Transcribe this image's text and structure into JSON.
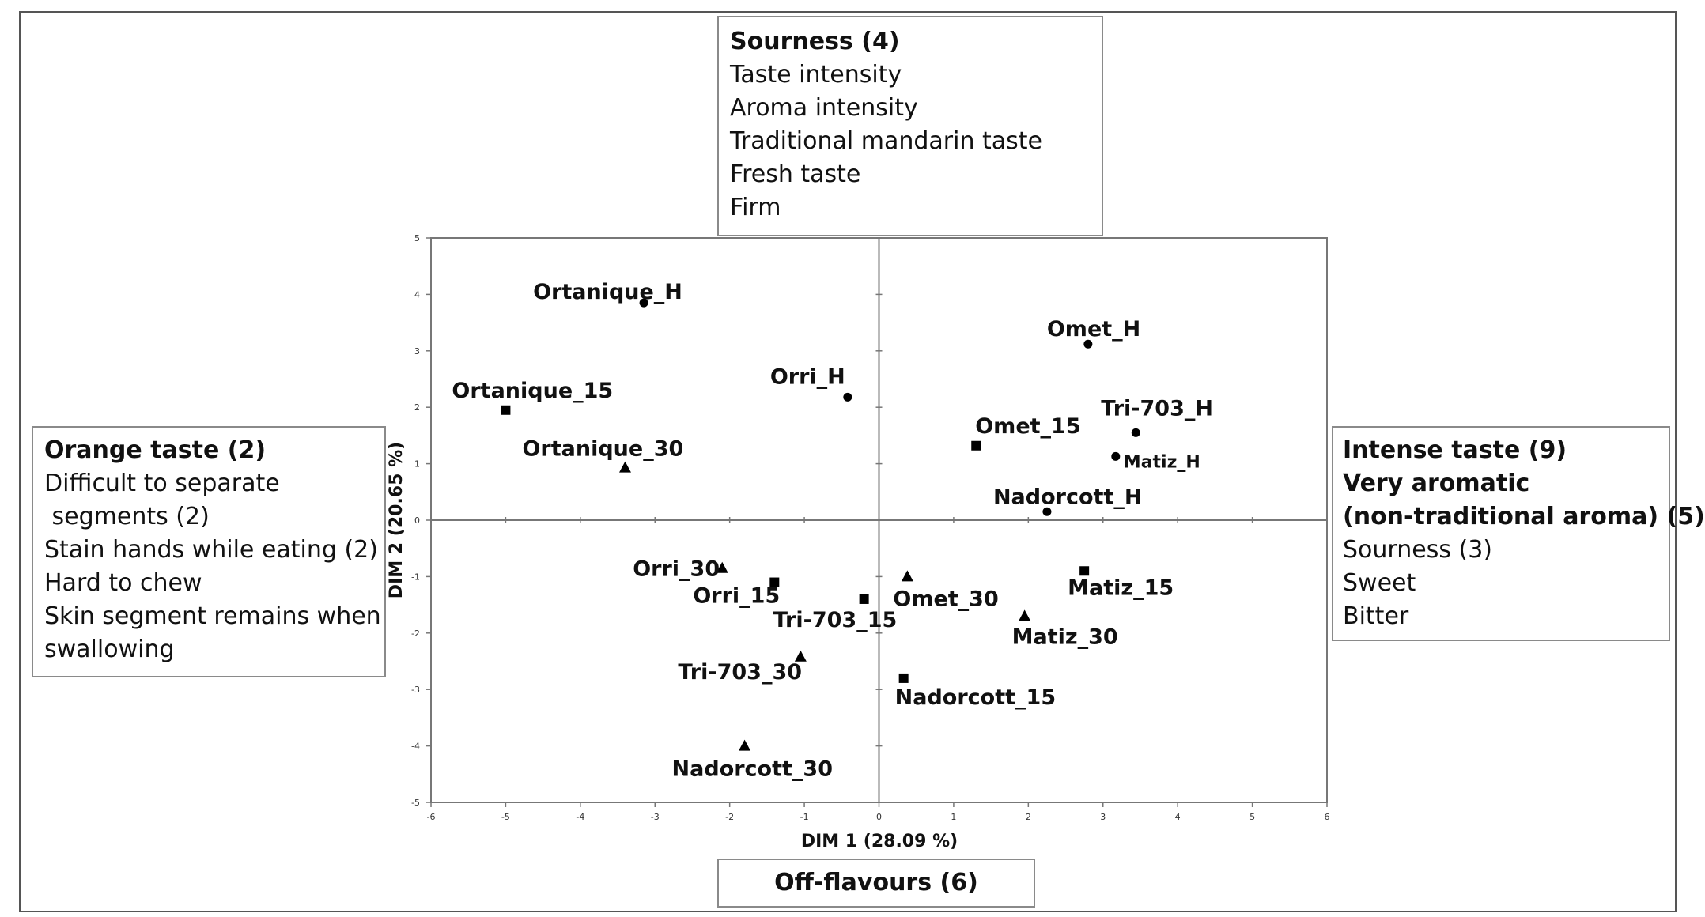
{
  "top_box": {
    "title": "Sourness (4)",
    "items": [
      "Taste intensity",
      "Aroma intensity",
      "Traditional mandarin taste",
      "Fresh taste",
      "Firm"
    ]
  },
  "left_box": {
    "title": "Orange taste (2)",
    "items": [
      "Difficult to separate",
      " segments (2)",
      "Stain hands while eating (2)",
      "Hard to chew",
      "Skin segment remains when",
      "swallowing"
    ]
  },
  "right_box": {
    "bold_items": [
      "Intense taste (9)",
      "Very aromatic",
      "(non-traditional aroma) (5)"
    ],
    "items": [
      "Sourness (3)",
      "Sweet",
      "Bitter"
    ]
  },
  "bottom_box": {
    "title": "Off-flavours (6)"
  },
  "chart_data": {
    "type": "scatter",
    "xlabel": "DIM 1 (28.09 %)",
    "ylabel": "DIM 2 (20.65 %)",
    "xlim": [
      -6,
      6
    ],
    "ylim": [
      -5,
      5
    ],
    "xticks": [
      -6,
      -5,
      -4,
      -3,
      -2,
      -1,
      0,
      1,
      2,
      3,
      4,
      5,
      6
    ],
    "yticks": [
      -5,
      -4,
      -3,
      -2,
      -1,
      0,
      1,
      2,
      3,
      4,
      5
    ],
    "grid": false,
    "points": [
      {
        "label": "Ortanique_H",
        "x": -3.15,
        "y": 3.85,
        "marker": "circle"
      },
      {
        "label": "Orri_H",
        "x": -0.42,
        "y": 2.18,
        "marker": "circle"
      },
      {
        "label": "Omet_H",
        "x": 2.8,
        "y": 3.12,
        "marker": "circle"
      },
      {
        "label": "Tri-703_H",
        "x": 3.44,
        "y": 1.55,
        "marker": "circle"
      },
      {
        "label": "Matiz_H",
        "x": 3.17,
        "y": 1.13,
        "marker": "circle"
      },
      {
        "label": "Nadorcott_H",
        "x": 2.25,
        "y": 0.15,
        "marker": "circle"
      },
      {
        "label": "Ortanique_15",
        "x": -5.0,
        "y": 1.95,
        "marker": "square"
      },
      {
        "label": "Omet_15",
        "x": 1.3,
        "y": 1.32,
        "marker": "square"
      },
      {
        "label": "Orri_15",
        "x": -1.4,
        "y": -1.1,
        "marker": "square"
      },
      {
        "label": "Tri-703_15",
        "x": -0.2,
        "y": -1.4,
        "marker": "square"
      },
      {
        "label": "Matiz_15",
        "x": 2.75,
        "y": -0.9,
        "marker": "square"
      },
      {
        "label": "Nadorcott_15",
        "x": 0.33,
        "y": -2.8,
        "marker": "square"
      },
      {
        "label": "Ortanique_30",
        "x": -3.4,
        "y": 0.93,
        "marker": "triangle"
      },
      {
        "label": "Orri_30",
        "x": -2.1,
        "y": -0.85,
        "marker": "triangle"
      },
      {
        "label": "Omet_30",
        "x": 0.38,
        "y": -1.0,
        "marker": "triangle"
      },
      {
        "label": "Matiz_30",
        "x": 1.95,
        "y": -1.7,
        "marker": "triangle"
      },
      {
        "label": "Tri-703_30",
        "x": -1.05,
        "y": -2.42,
        "marker": "triangle"
      },
      {
        "label": "Nadorcott_30",
        "x": -1.8,
        "y": -4.0,
        "marker": "triangle"
      }
    ]
  }
}
